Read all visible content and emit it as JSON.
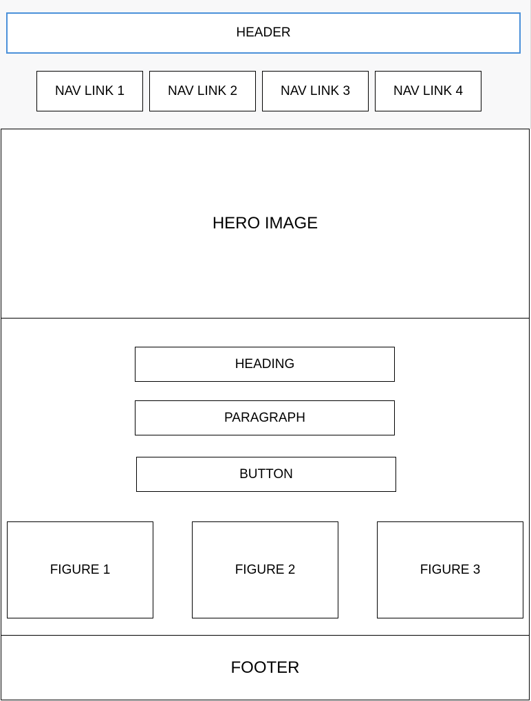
{
  "header": {
    "label": "HEADER"
  },
  "nav": {
    "links": [
      {
        "label": "NAV LINK 1"
      },
      {
        "label": "NAV LINK 2"
      },
      {
        "label": "NAV LINK 3"
      },
      {
        "label": "NAV LINK 4"
      }
    ]
  },
  "hero": {
    "label": "HERO IMAGE"
  },
  "content": {
    "heading": "HEADING",
    "paragraph": "PARAGRAPH",
    "button": "BUTTON",
    "figures": [
      {
        "label": "FIGURE 1"
      },
      {
        "label": "FIGURE 2"
      },
      {
        "label": "FIGURE 3"
      }
    ]
  },
  "footer": {
    "label": "FOOTER"
  },
  "colors": {
    "header_border": "#4a90d9",
    "box_border": "#000000",
    "top_background": "#f8f8f9"
  }
}
